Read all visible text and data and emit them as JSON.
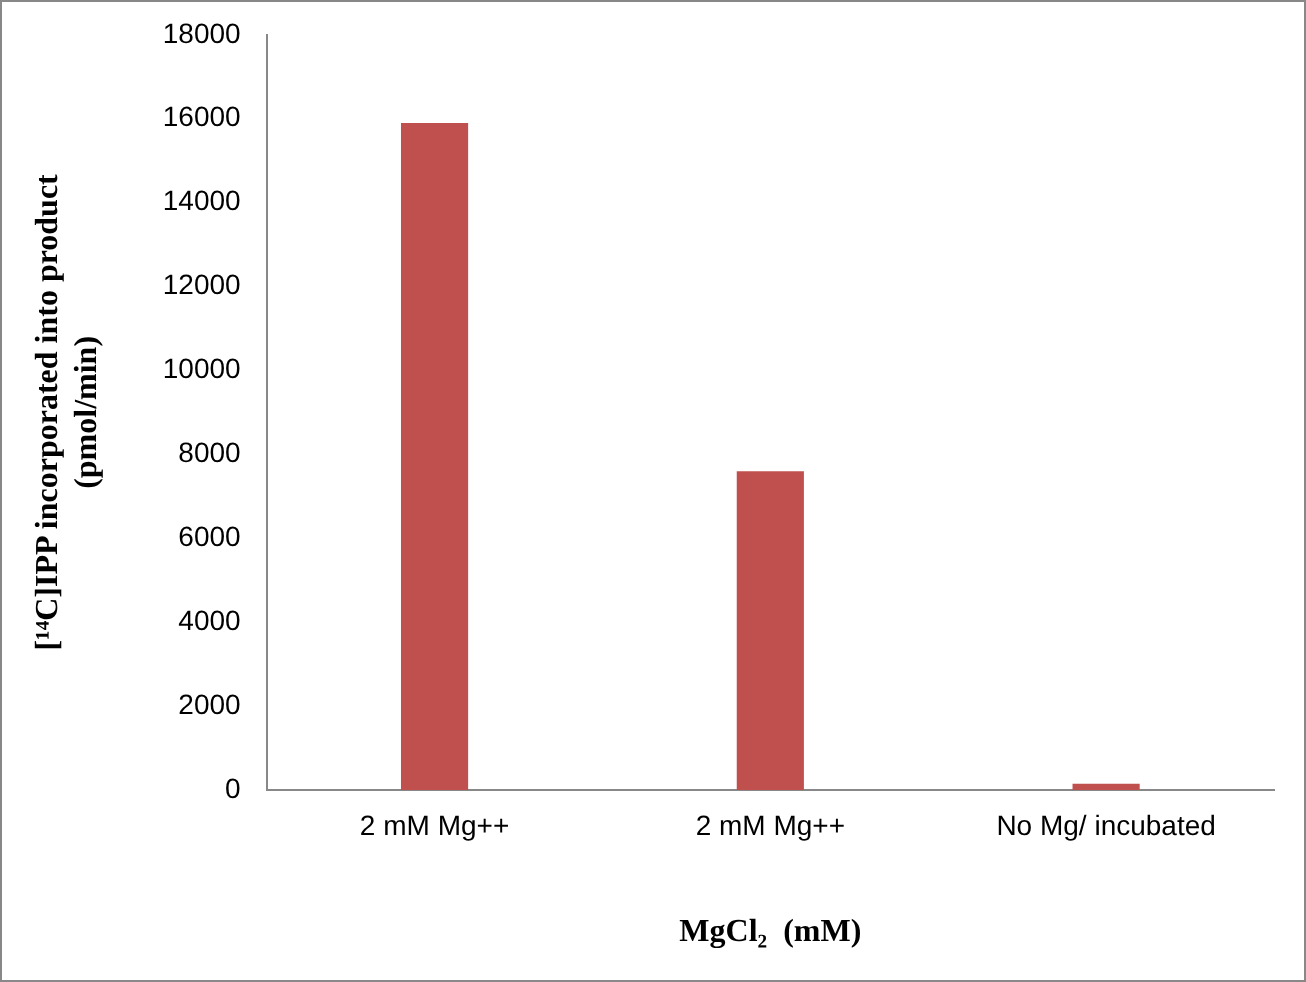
{
  "chart_data": {
    "type": "bar",
    "ylabel": "[¹⁴C]IPP incorporated into product (pmol/min)",
    "xlabel": "MgCl₂  (mM)",
    "categories": [
      "2 mM Mg++",
      "2 mM Mg++",
      "No Mg/ incubated"
    ],
    "values": [
      15900,
      7600,
      150
    ],
    "color": "#c0504d",
    "ylim": [
      0,
      18000
    ],
    "yticks": [
      0,
      2000,
      4000,
      6000,
      8000,
      10000,
      12000,
      14000,
      16000,
      18000
    ],
    "grid": false,
    "legend": false
  }
}
